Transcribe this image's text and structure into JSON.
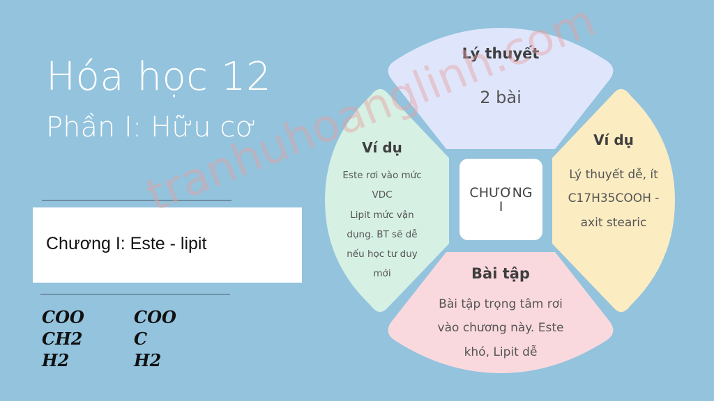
{
  "slide": {
    "title": "Hóa học 12",
    "subtitle": "Phần I: Hữu cơ",
    "chapter": "Chương I: Este - lipit",
    "handwriting": {
      "col1": [
        "COO",
        "CH2",
        "H2"
      ],
      "col2": [
        "COO",
        "C",
        "H2"
      ]
    },
    "watermark": "tranhuhoanglinh.com"
  },
  "diagram": {
    "center": [
      "CHƯƠNG",
      "I"
    ],
    "top": {
      "title": "Lý thuyết",
      "body": [
        "2 bài"
      ],
      "color": "#dfe6fb"
    },
    "right": {
      "title": "Ví dụ",
      "body": [
        "Lý thuyết dễ, ít",
        "C17H35COOH -",
        "axit stearic"
      ],
      "color": "#fbecc2"
    },
    "bottom": {
      "title": "Bài tập",
      "body": [
        "Bài tập trọng tâm rơi",
        "vào chương này. Este",
        "khó, Lipit dễ"
      ],
      "color": "#fad9de"
    },
    "left": {
      "title": "Ví dụ",
      "body": [
        "Este rơi vào mức",
        "VDC",
        "Lipit mức vận",
        "dụng. BT sẽ dễ",
        "nếu học tư duy",
        "mới"
      ],
      "color": "#d6f0e4"
    }
  }
}
